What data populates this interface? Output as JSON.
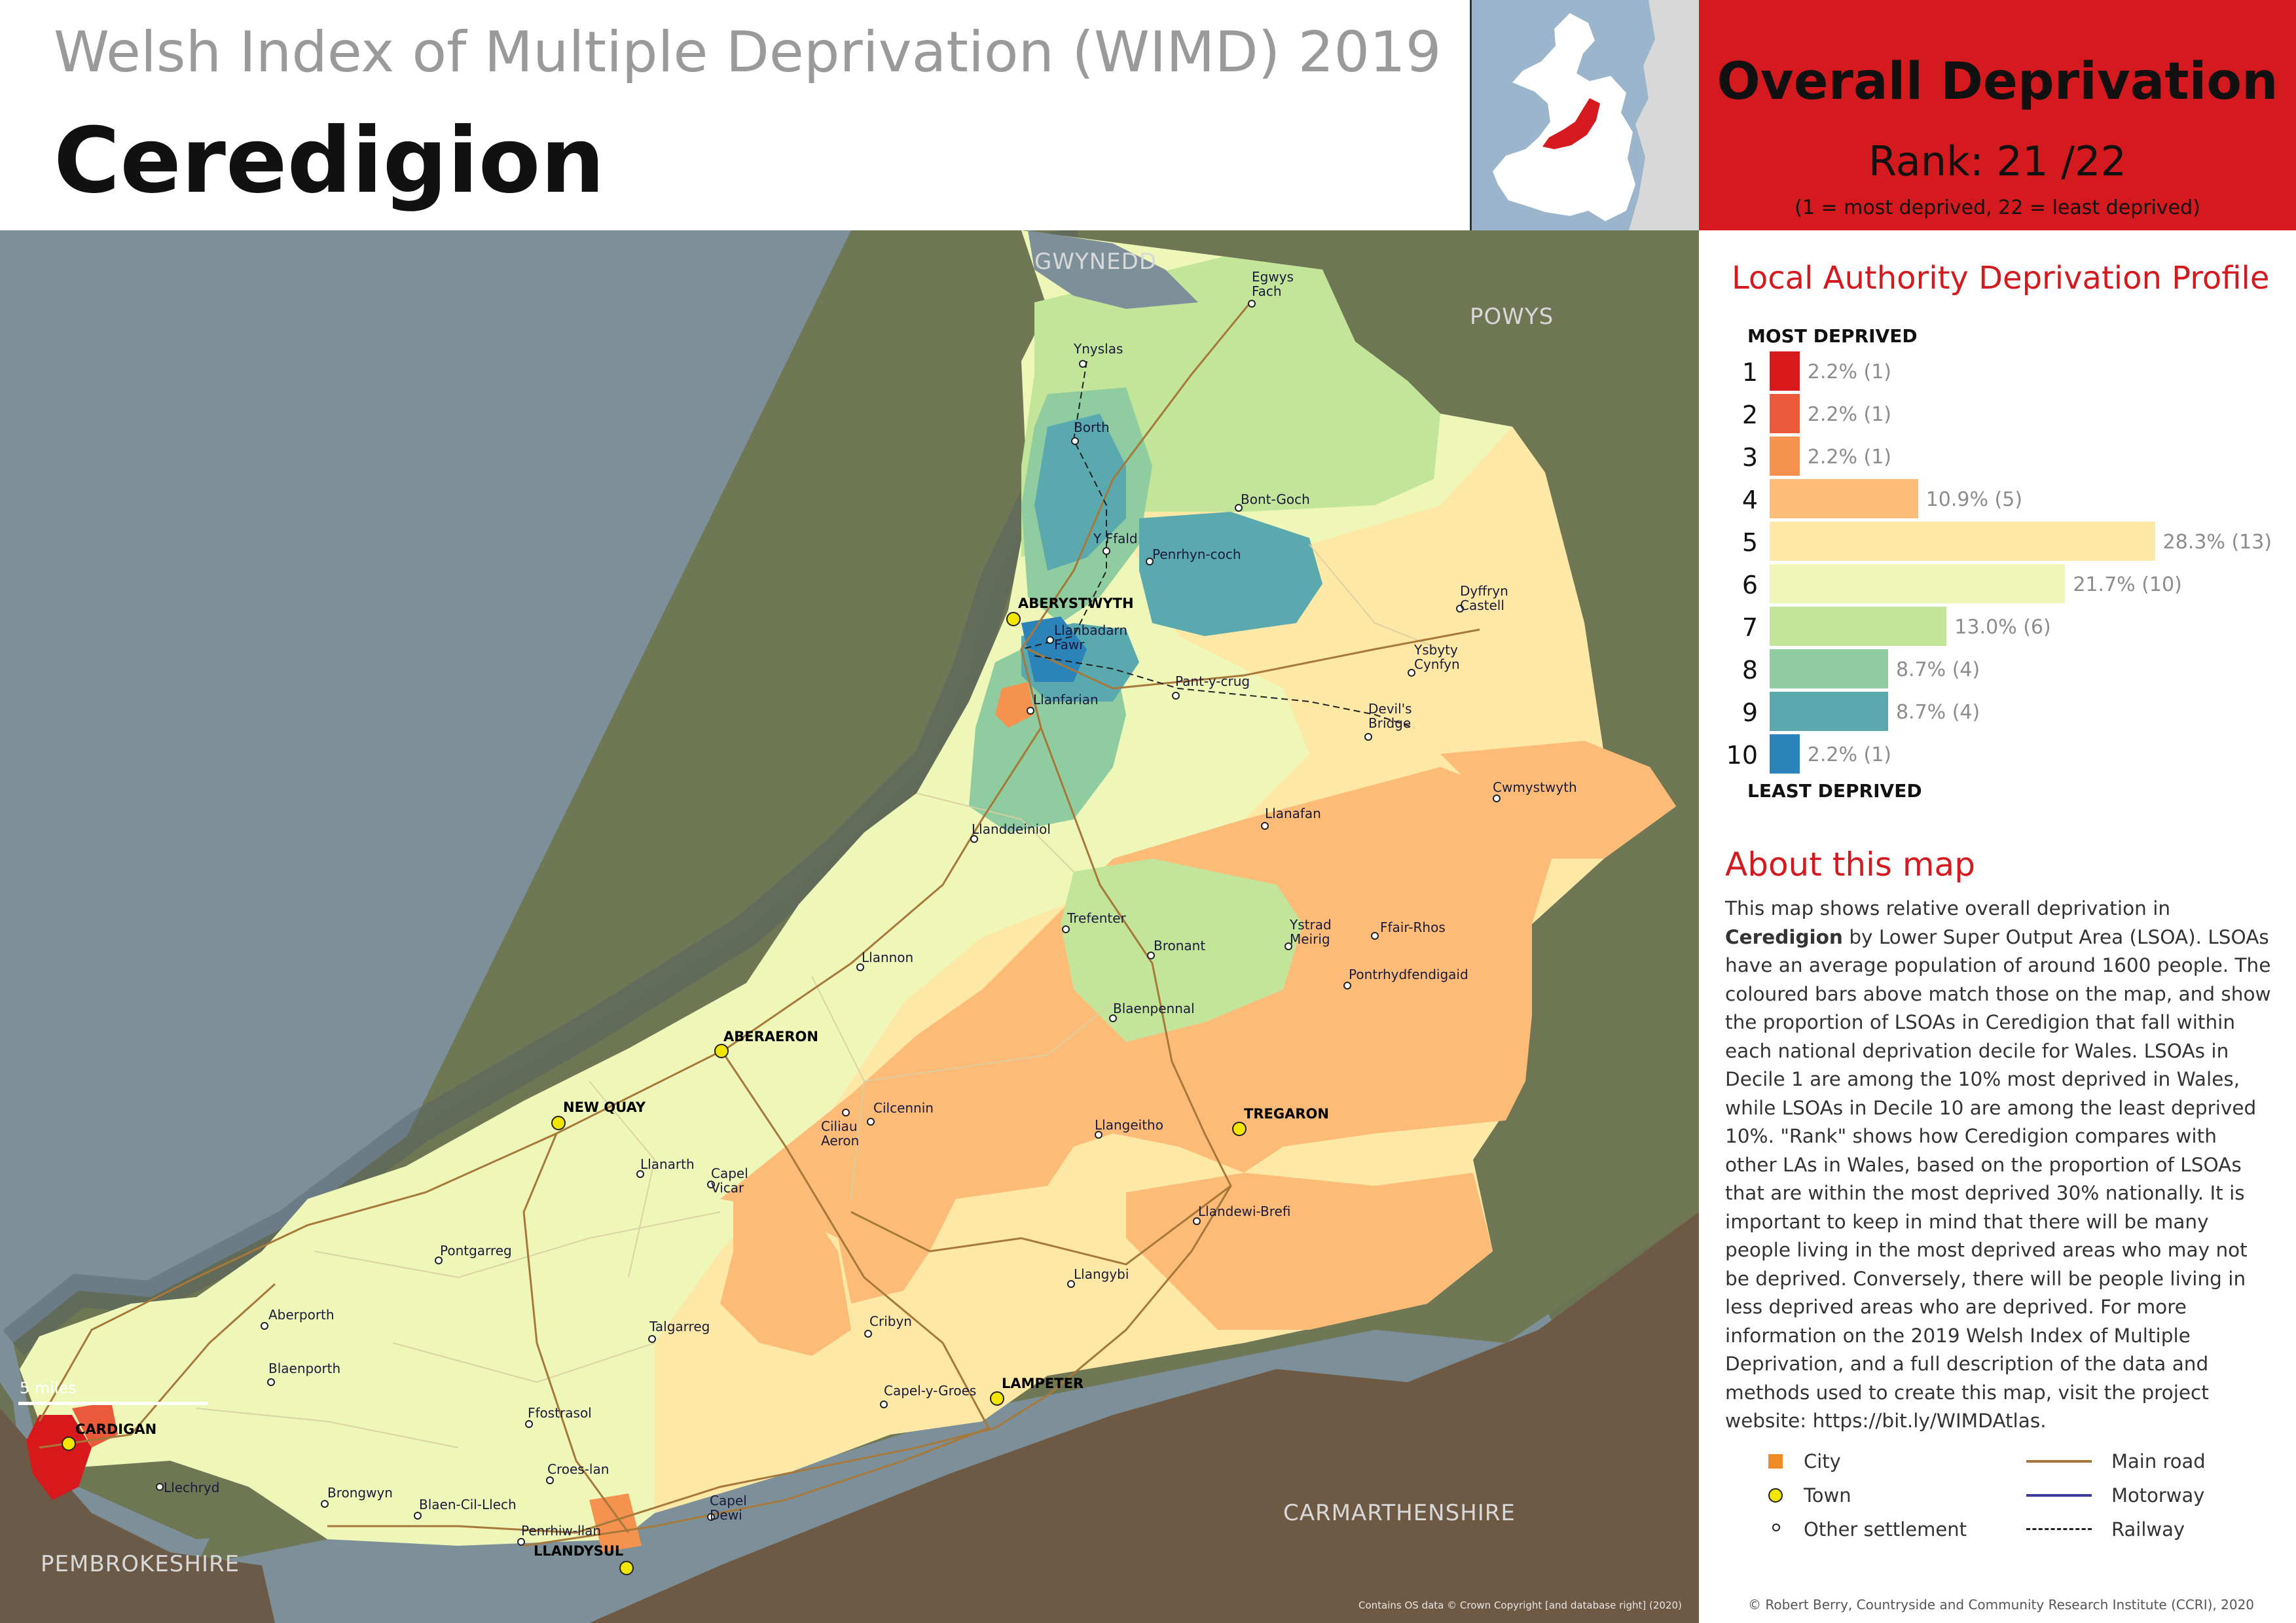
{
  "header": {
    "subtitle": "Welsh Index of Multiple Deprivation (WIMD) 2019",
    "title": "Ceredigion"
  },
  "rank_box": {
    "title": "Overall Deprivation",
    "rank": "Rank: 21 /22",
    "note": "(1 = most deprived, 22 = least deprived)"
  },
  "map": {
    "regions": {
      "gwynedd": "GWYNEDD",
      "powys": "POWYS",
      "carmarthenshire": "CARMARTHENSHIRE",
      "pembrokeshire": "PEMBROKESHIRE"
    },
    "towns": {
      "aberystwyth": "ABERYSTWYTH",
      "aberaeron": "ABERAERON",
      "new_quay": "NEW QUAY",
      "tregaron": "TREGARON",
      "lampeter": "LAMPETER",
      "cardigan": "CARDIGAN",
      "llandysul": "LLANDYSUL"
    },
    "places": {
      "egwys_fach": "Egwys\nFach",
      "ynyslas": "Ynyslas",
      "borth": "Borth",
      "bont_goch": "Bont-Goch",
      "y_ffald": "Y Ffald",
      "penrhyn_coch": "Penrhyn-coch",
      "llanbadarn_fawr": "Llanbadarn\nFawr",
      "dyffryn_castell": "Dyffryn\nCastell",
      "ysbyty_cynfyn": "Ysbyty\nCynfyn",
      "pant_y_crug": "Pant-y-crug",
      "devils_bridge": "Devil's\nBridge",
      "llanfarian": "Llanfarian",
      "cwmystwyth": "Cwmystwyth",
      "llanafan": "Llanafan",
      "llanddeiniol": "Llanddeiniol",
      "trefenter": "Trefenter",
      "bronant": "Bronant",
      "ystrad_meirig": "Ystrad\nMeirig",
      "ffair_rhos": "Ffair-Rhos",
      "pontrhydfendigaid": "Pontrhydfendigaid",
      "llannon": "Llannon",
      "blaenpennal": "Blaenpennal",
      "ciliau_aeron": "Ciliau\nAeron",
      "cilcennin": "Cilcennin",
      "llangeitho": "Llangeitho",
      "llanarth": "Llanarth",
      "capel_vicar": "Capel\nVicar",
      "llandewi_brefi": "Llandewi-Brefi",
      "pontgarreg": "Pontgarreg",
      "llangybi": "Llangybi",
      "aberporth": "Aberporth",
      "talgarreg": "Talgarreg",
      "cribyn": "Cribyn",
      "blaenporth": "Blaenporth",
      "capel_y_groes": "Capel-y-Groes",
      "ffostrasol": "Ffostrasol",
      "llechryd": "Llechryd",
      "croes_lan": "Croes-lan",
      "brongwyn": "Brongwyn",
      "blaen_cil_llech": "Blaen-Cil-Llech",
      "capel_dewi": "Capel\nDewi",
      "penrhiw_llan": "Penrhiw-llan"
    },
    "scale_label": "5 miles",
    "credit": "Contains OS data © Crown Copyright [and database right] (2020)"
  },
  "profile": {
    "title": "Local Authority Deprivation Profile",
    "most_label": "MOST DEPRIVED",
    "least_label": "LEAST DEPRIVED",
    "deciles": [
      {
        "decile": "1",
        "percent": 2.2,
        "label": "2.2% (1)",
        "color": "#d7191c"
      },
      {
        "decile": "2",
        "percent": 2.2,
        "label": "2.2% (1)",
        "color": "#ea5a3a"
      },
      {
        "decile": "3",
        "percent": 2.2,
        "label": "2.2% (1)",
        "color": "#f6924f"
      },
      {
        "decile": "4",
        "percent": 10.9,
        "label": "10.9% (5)",
        "color": "#fcbc77"
      },
      {
        "decile": "5",
        "percent": 28.3,
        "label": "28.3% (13)",
        "color": "#fee8a5"
      },
      {
        "decile": "6",
        "percent": 21.7,
        "label": "21.7% (10)",
        "color": "#eef6b8"
      },
      {
        "decile": "7",
        "percent": 13.0,
        "label": "13.0% (6)",
        "color": "#c2e59a"
      },
      {
        "decile": "8",
        "percent": 8.7,
        "label": "8.7% (4)",
        "color": "#8fcc9f"
      },
      {
        "decile": "9",
        "percent": 8.7,
        "label": "8.7% (4)",
        "color": "#5aa9ae"
      },
      {
        "decile": "10",
        "percent": 2.2,
        "label": "2.2% (1)",
        "color": "#2b83ba"
      }
    ]
  },
  "about": {
    "title": "About this map",
    "text_pre": "This map shows relative overall deprivation in ",
    "text_bold": "Ceredigion",
    "text_post": " by Lower Super Output Area (LSOA). LSOAs have an average population of around 1600 people. The coloured bars above match those on the map, and show the proportion of LSOAs in Ceredigion that fall within each national deprivation decile for Wales. LSOAs in Decile 1 are among the 10% most deprived in Wales, while LSOAs in Decile 10 are among the least deprived 10%. \"Rank\" shows how Ceredigion compares with other LAs in Wales, based on the proportion of LSOAs that are within the most deprived 30% nationally. It is important to keep in mind that there will be many people living in the most deprived areas who may not be deprived. Conversely, there will be people living in less deprived areas who are deprived. For more information on the 2019 Welsh Index of Multiple Deprivation, and a full description of the data and methods used to create this map, visit the project website: https://bit.ly/WIMDAtlas."
  },
  "legend": {
    "city": "City",
    "town": "Town",
    "other": "Other settlement",
    "main_road": "Main road",
    "motorway": "Motorway",
    "railway": "Railway",
    "main_road_color": "#a6783a",
    "motorway_color": "#3c3c9a"
  },
  "credit": "© Robert Berry, Countryside and Community Research Institute (CCRI), 2020"
}
